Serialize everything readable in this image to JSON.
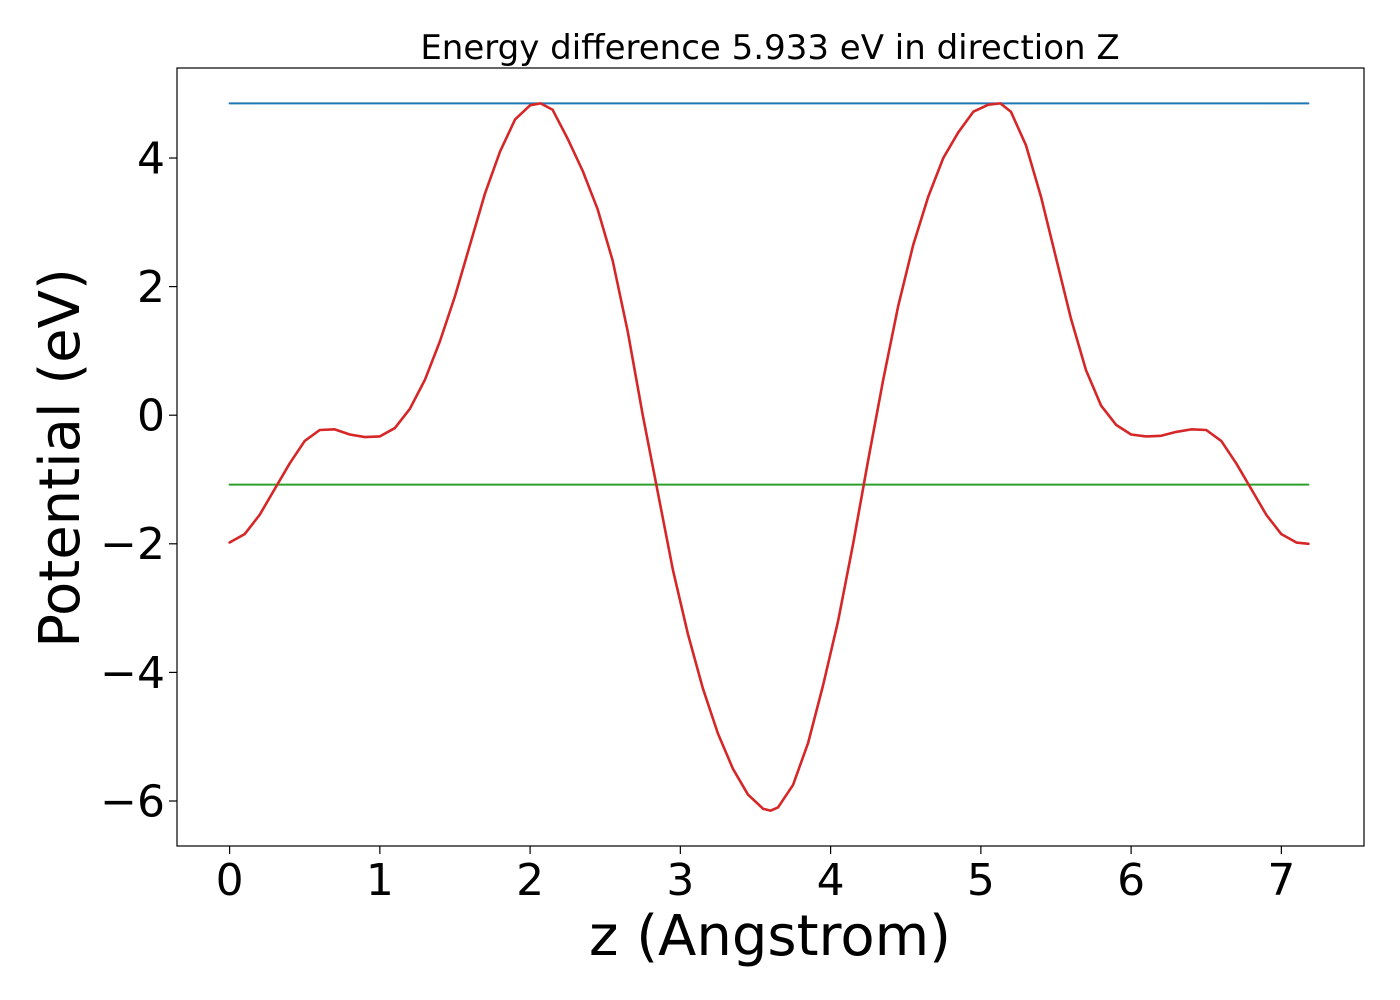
{
  "chart_data": {
    "type": "line",
    "title": "Energy difference 5.933 eV in direction Z",
    "xlabel": "z (Angstrom)",
    "ylabel": "Potential (eV)",
    "xlim": [
      -0.35,
      7.55
    ],
    "ylim": [
      -6.7,
      5.4
    ],
    "xticks": [
      0,
      1,
      2,
      3,
      4,
      5,
      6,
      7
    ],
    "xtick_labels": [
      "0",
      "1",
      "2",
      "3",
      "4",
      "5",
      "6",
      "7"
    ],
    "yticks": [
      -6,
      -4,
      -2,
      0,
      2,
      4
    ],
    "ytick_labels": [
      "−6",
      "−4",
      "−2",
      "0",
      "2",
      "4"
    ],
    "grid": false,
    "colors": {
      "potential": "#d62728",
      "upper_level": "#1f77b4",
      "lower_level": "#2ca02c"
    },
    "series": [
      {
        "id": "potential",
        "x": [
          0.0,
          0.1,
          0.2,
          0.3,
          0.4,
          0.5,
          0.6,
          0.7,
          0.8,
          0.9,
          1.0,
          1.1,
          1.2,
          1.3,
          1.4,
          1.5,
          1.6,
          1.7,
          1.8,
          1.9,
          2.0,
          2.07,
          2.15,
          2.25,
          2.35,
          2.45,
          2.55,
          2.65,
          2.75,
          2.85,
          2.95,
          3.05,
          3.15,
          3.25,
          3.35,
          3.45,
          3.55,
          3.6,
          3.65,
          3.75,
          3.85,
          3.95,
          4.05,
          4.15,
          4.25,
          4.35,
          4.45,
          4.55,
          4.65,
          4.75,
          4.85,
          4.95,
          5.05,
          5.13,
          5.2,
          5.3,
          5.4,
          5.5,
          5.6,
          5.7,
          5.8,
          5.9,
          6.0,
          6.1,
          6.2,
          6.3,
          6.4,
          6.5,
          6.6,
          6.7,
          6.8,
          6.9,
          7.0,
          7.1,
          7.18
        ],
        "y": [
          -1.98,
          -1.85,
          -1.55,
          -1.15,
          -0.75,
          -0.4,
          -0.23,
          -0.22,
          -0.3,
          -0.34,
          -0.33,
          -0.2,
          0.1,
          0.55,
          1.15,
          1.85,
          2.65,
          3.45,
          4.1,
          4.6,
          4.82,
          4.85,
          4.75,
          4.3,
          3.8,
          3.2,
          2.4,
          1.3,
          0.0,
          -1.2,
          -2.4,
          -3.4,
          -4.25,
          -4.95,
          -5.5,
          -5.9,
          -6.12,
          -6.15,
          -6.1,
          -5.75,
          -5.1,
          -4.2,
          -3.2,
          -2.0,
          -0.7,
          0.55,
          1.7,
          2.65,
          3.4,
          4.0,
          4.4,
          4.72,
          4.83,
          4.85,
          4.72,
          4.2,
          3.4,
          2.45,
          1.5,
          0.7,
          0.15,
          -0.15,
          -0.3,
          -0.33,
          -0.32,
          -0.26,
          -0.22,
          -0.23,
          -0.4,
          -0.75,
          -1.15,
          -1.55,
          -1.85,
          -1.98,
          -2.0
        ]
      },
      {
        "id": "upper_level",
        "x": [
          0.0,
          7.18
        ],
        "y": [
          4.85,
          4.85
        ]
      },
      {
        "id": "lower_level",
        "x": [
          0.0,
          7.18
        ],
        "y": [
          -1.08,
          -1.08
        ]
      }
    ]
  }
}
